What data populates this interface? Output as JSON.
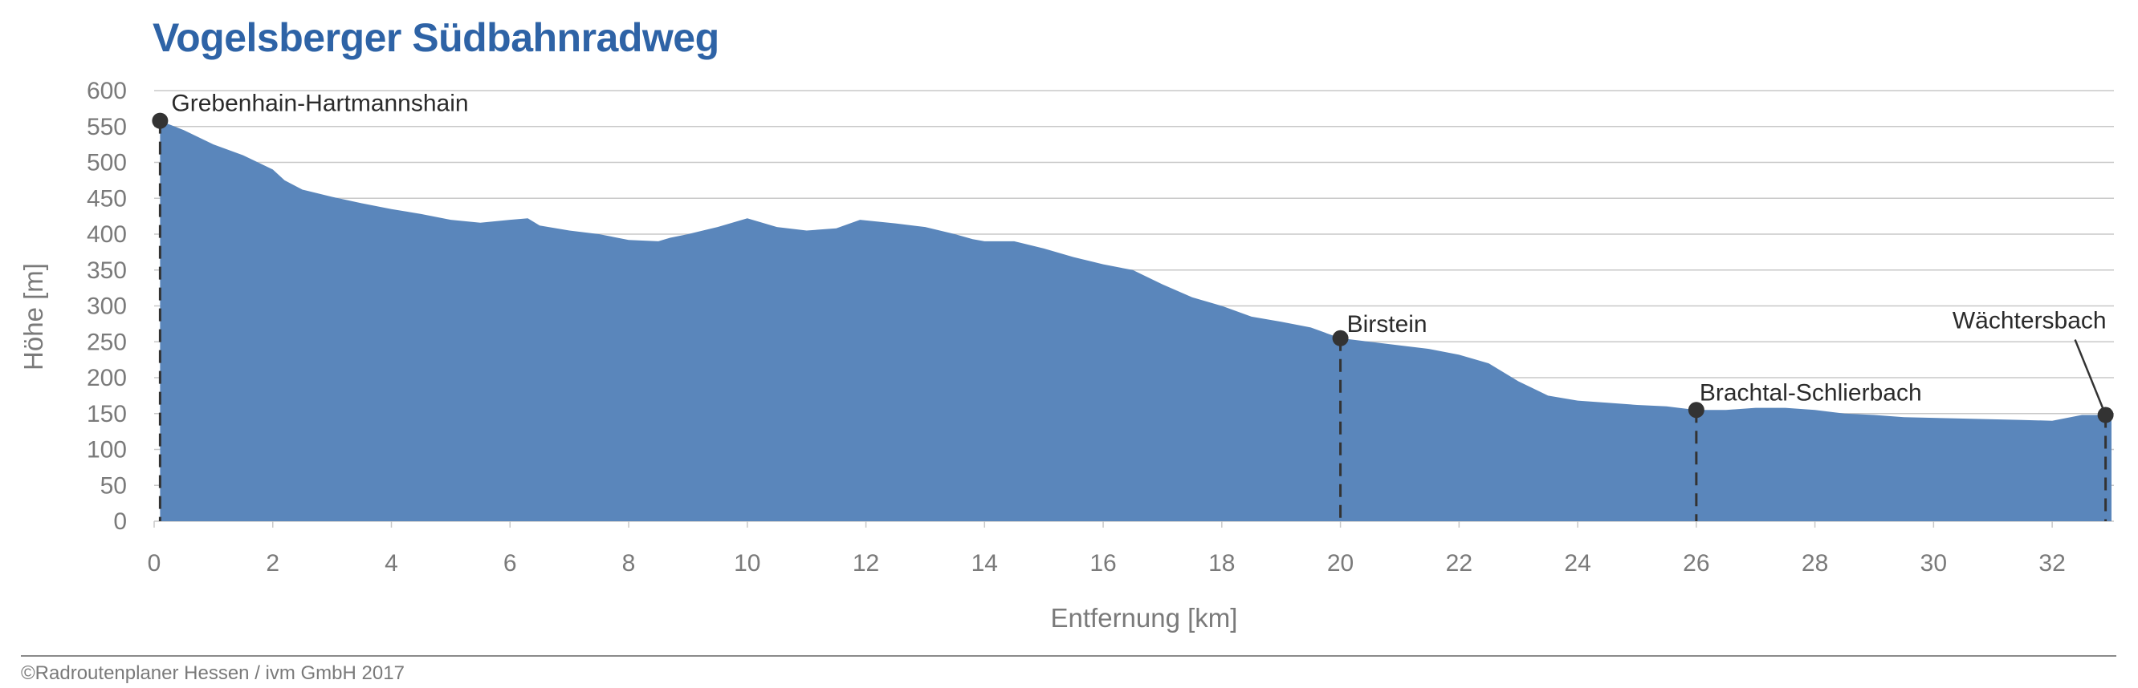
{
  "title": "Vogelsberger Südbahnradweg",
  "copyright": "©Radroutenplaner Hessen / ivm GmbH 2017",
  "colors": {
    "fill": "#5a86bb",
    "title": "#2e63a6",
    "grid": "#c8c8c8",
    "text": "#7a7a7a",
    "marker": "#333333"
  },
  "chart_data": {
    "type": "area",
    "title": "Vogelsberger Südbahnradweg",
    "xlabel": "Entfernung [km]",
    "ylabel": "Höhe [m]",
    "xlim": [
      0,
      33
    ],
    "ylim": [
      0,
      600
    ],
    "xticks": [
      0,
      2,
      4,
      6,
      8,
      10,
      12,
      14,
      16,
      18,
      20,
      22,
      24,
      26,
      28,
      30,
      32
    ],
    "yticks": [
      0,
      50,
      100,
      150,
      200,
      250,
      300,
      350,
      400,
      450,
      500,
      550,
      600
    ],
    "grid": true,
    "x": [
      0.1,
      0.5,
      1.0,
      1.5,
      2.0,
      2.2,
      2.5,
      3.0,
      3.5,
      4.0,
      4.5,
      5.0,
      5.5,
      6.0,
      6.3,
      6.5,
      7.0,
      7.5,
      8.0,
      8.5,
      8.7,
      9.0,
      9.5,
      10.0,
      10.5,
      11.0,
      11.5,
      11.9,
      12.5,
      13.0,
      13.5,
      13.8,
      14.0,
      14.5,
      15.0,
      15.5,
      15.8,
      16.0,
      16.5,
      17.0,
      17.5,
      18.0,
      18.5,
      19.0,
      19.5,
      20.0,
      20.5,
      21.0,
      21.5,
      22.0,
      22.5,
      23.0,
      23.5,
      24.0,
      24.5,
      25.0,
      25.5,
      26.0,
      26.5,
      27.0,
      27.5,
      28.0,
      28.5,
      29.0,
      29.5,
      30.0,
      30.5,
      31.0,
      31.5,
      32.0,
      32.5,
      32.9
    ],
    "y": [
      558,
      545,
      525,
      510,
      490,
      475,
      462,
      452,
      443,
      435,
      428,
      420,
      416,
      420,
      422,
      412,
      405,
      400,
      392,
      390,
      395,
      400,
      410,
      422,
      410,
      405,
      408,
      420,
      415,
      410,
      400,
      393,
      390,
      390,
      380,
      368,
      362,
      358,
      350,
      330,
      312,
      300,
      285,
      278,
      270,
      255,
      250,
      245,
      240,
      232,
      220,
      195,
      175,
      168,
      165,
      162,
      160,
      155,
      155,
      158,
      158,
      155,
      150,
      148,
      145,
      144,
      143,
      142,
      141,
      140,
      148,
      148
    ],
    "annotations": [
      {
        "label": "Grebenhain-Hartmannshain",
        "x": 0.1,
        "y": 558
      },
      {
        "label": "Birstein",
        "x": 20.0,
        "y": 255
      },
      {
        "label": "Brachtal-Schlierbach",
        "x": 26.0,
        "y": 155
      },
      {
        "label": "Wächtersbach",
        "x": 32.9,
        "y": 148
      }
    ]
  }
}
